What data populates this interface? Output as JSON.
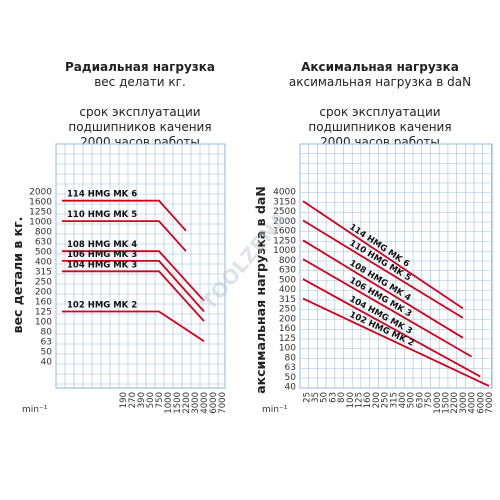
{
  "left": {
    "title": "Радиальная нагрузка",
    "subtitle": "вес делати кг.",
    "note": [
      "срок эксплуатации",
      "подшипников качения",
      "2000 часов работы"
    ]
  },
  "right": {
    "title": "Аксимальная нагрузка",
    "subtitle": "аксимальная нагрузка в daN",
    "note": [
      "срок эксплуатации",
      "подшипников качения",
      "2000 часов работы"
    ]
  },
  "watermark": "TOOLZENA",
  "chart_data": [
    {
      "type": "line",
      "title": "Радиальная нагрузка",
      "ylabel": "вес детали в кг.",
      "xlabel": "min⁻¹",
      "x_ticks": [
        "190",
        "270",
        "390",
        "500",
        "750",
        "1000",
        "1500",
        "2200",
        "3000",
        "4000",
        "6000",
        "7000"
      ],
      "y_ticks": [
        "2000",
        "1600",
        "1250",
        "1000",
        "800",
        "630",
        "500",
        "400",
        "315",
        "250",
        "200",
        "160",
        "125",
        "100",
        "80",
        "63",
        "50",
        "40"
      ],
      "series": [
        {
          "name": "114 HMG MK 6",
          "x": [
            "190",
            "750",
            "2200"
          ],
          "y": [
            1600,
            1600,
            800
          ]
        },
        {
          "name": "110 HMG MK 5",
          "x": [
            "190",
            "750",
            "2200"
          ],
          "y": [
            1000,
            1000,
            500
          ]
        },
        {
          "name": "108 HMG MK 4",
          "x": [
            "190",
            "750",
            "4000"
          ],
          "y": [
            500,
            500,
            160
          ]
        },
        {
          "name": "106 HMG MK 3",
          "x": [
            "190",
            "750",
            "4000"
          ],
          "y": [
            400,
            400,
            125
          ]
        },
        {
          "name": "104 HMG MK 3",
          "x": [
            "190",
            "750",
            "4000"
          ],
          "y": [
            315,
            315,
            100
          ]
        },
        {
          "name": "102 HMG MK 2",
          "x": [
            "190",
            "750",
            "4000"
          ],
          "y": [
            125,
            125,
            63
          ]
        }
      ]
    },
    {
      "type": "line",
      "title": "Аксимальная нагрузка",
      "ylabel": "аксимальная нагрузка в daN",
      "xlabel": "min⁻¹",
      "x_ticks": [
        "25",
        "35",
        "50",
        "63",
        "80",
        "100",
        "125",
        "160",
        "200",
        "250",
        "315",
        "400",
        "500",
        "630",
        "750",
        "1000",
        "1500",
        "2200",
        "3000",
        "4000",
        "6000",
        "7000"
      ],
      "y_ticks": [
        "4000",
        "3150",
        "2500",
        "2000",
        "1600",
        "1250",
        "1000",
        "800",
        "630",
        "500",
        "400",
        "315",
        "250",
        "200",
        "160",
        "125",
        "100",
        "80",
        "63",
        "50",
        "40"
      ],
      "series": [
        {
          "name": "114 HMG MK 6",
          "x": [
            "25",
            "3000"
          ],
          "y": [
            3150,
            250
          ]
        },
        {
          "name": "110 HMG MK 5",
          "x": [
            "25",
            "3000"
          ],
          "y": [
            2000,
            200
          ]
        },
        {
          "name": "108 HMG MK 4",
          "x": [
            "25",
            "3000"
          ],
          "y": [
            1250,
            125
          ]
        },
        {
          "name": "106 HMG MK 3",
          "x": [
            "25",
            "4000"
          ],
          "y": [
            800,
            80
          ]
        },
        {
          "name": "104 HMG MK 3",
          "x": [
            "25",
            "6000"
          ],
          "y": [
            500,
            50
          ]
        },
        {
          "name": "102 HMG MK 2",
          "x": [
            "25",
            "7000"
          ],
          "y": [
            315,
            40
          ]
        }
      ]
    }
  ]
}
